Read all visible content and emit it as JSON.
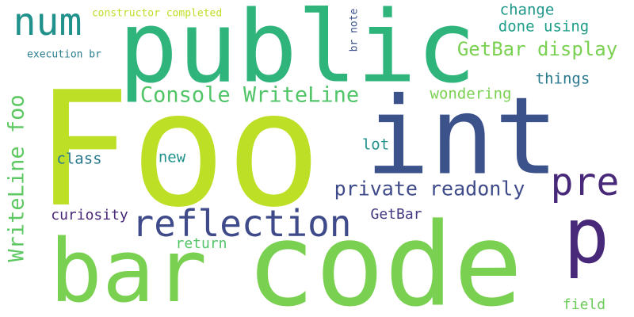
{
  "words": [
    {
      "text": "Foo",
      "color": "#bddf26"
    },
    {
      "text": "code",
      "color": "#7ad151"
    },
    {
      "text": "public",
      "color": "#2fb47c"
    },
    {
      "text": "bar",
      "color": "#7ad151"
    },
    {
      "text": "int",
      "color": "#3b528b"
    },
    {
      "text": "p",
      "color": "#482878"
    },
    {
      "text": "num",
      "color": "#21918c"
    },
    {
      "text": "pre",
      "color": "#482878"
    },
    {
      "text": "reflection",
      "color": "#3e4a89"
    },
    {
      "text": "WriteLine foo",
      "color": "#5ec962"
    },
    {
      "text": "Console WriteLine",
      "color": "#52c569"
    },
    {
      "text": "private readonly",
      "color": "#3e4a89"
    },
    {
      "text": "GetBar display",
      "color": "#7ad151"
    },
    {
      "text": "change",
      "color": "#1f988b"
    },
    {
      "text": "done using",
      "color": "#1f9e89"
    },
    {
      "text": "things",
      "color": "#2a788e"
    },
    {
      "text": "wondering",
      "color": "#7ad151"
    },
    {
      "text": "lot",
      "color": "#21918c"
    },
    {
      "text": "class",
      "color": "#2a788e"
    },
    {
      "text": "new",
      "color": "#21918c"
    },
    {
      "text": "curiosity",
      "color": "#482878"
    },
    {
      "text": "GetBar",
      "color": "#443983"
    },
    {
      "text": "return",
      "color": "#52c569"
    },
    {
      "text": "field",
      "color": "#6ccd5a"
    },
    {
      "text": "constructor completed",
      "color": "#bddf26"
    },
    {
      "text": "execution br",
      "color": "#287c8e"
    },
    {
      "text": "br note",
      "color": "#3b528b"
    }
  ]
}
